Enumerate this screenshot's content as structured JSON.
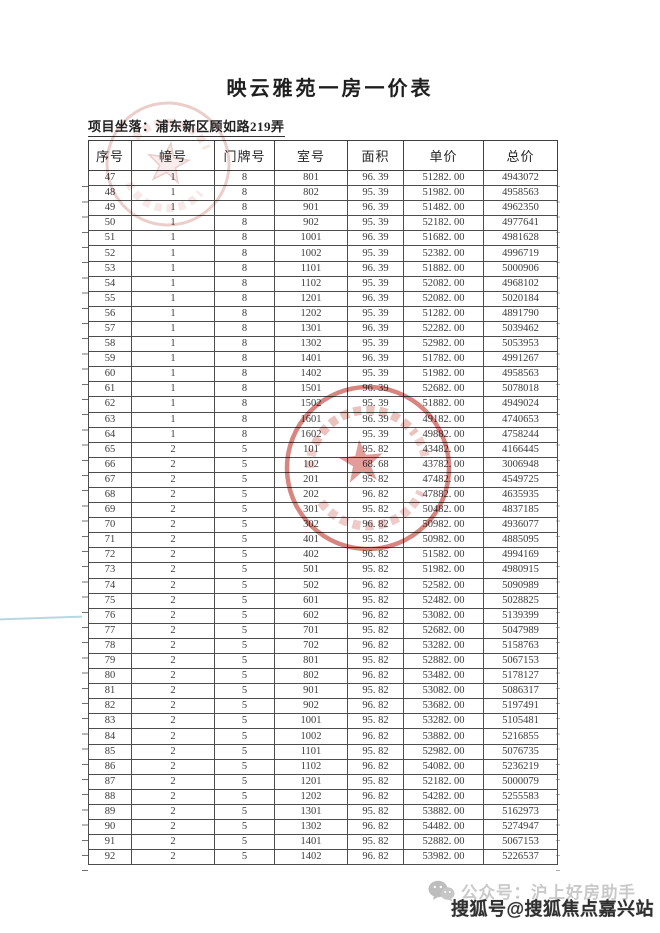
{
  "document": {
    "title": "映云雅苑一房一价表",
    "location": "项目坐落：浦东新区顾如路219弄"
  },
  "table": {
    "headers": [
      "序号",
      "幢号",
      "门牌号",
      "室号",
      "面积",
      "单价",
      "总价"
    ],
    "rows": [
      [
        "47",
        "1",
        "8",
        "801",
        "96. 39",
        "51282. 00",
        "4943072"
      ],
      [
        "48",
        "1",
        "8",
        "802",
        "95. 39",
        "51982. 00",
        "4958563"
      ],
      [
        "49",
        "1",
        "8",
        "901",
        "96. 39",
        "51482. 00",
        "4962350"
      ],
      [
        "50",
        "1",
        "8",
        "902",
        "95. 39",
        "52182. 00",
        "4977641"
      ],
      [
        "51",
        "1",
        "8",
        "1001",
        "96. 39",
        "51682. 00",
        "4981628"
      ],
      [
        "52",
        "1",
        "8",
        "1002",
        "95. 39",
        "52382. 00",
        "4996719"
      ],
      [
        "53",
        "1",
        "8",
        "1101",
        "96. 39",
        "51882. 00",
        "5000906"
      ],
      [
        "54",
        "1",
        "8",
        "1102",
        "95. 39",
        "52082. 00",
        "4968102"
      ],
      [
        "55",
        "1",
        "8",
        "1201",
        "96. 39",
        "52082. 00",
        "5020184"
      ],
      [
        "56",
        "1",
        "8",
        "1202",
        "95. 39",
        "51282. 00",
        "4891790"
      ],
      [
        "57",
        "1",
        "8",
        "1301",
        "96. 39",
        "52282. 00",
        "5039462"
      ],
      [
        "58",
        "1",
        "8",
        "1302",
        "95. 39",
        "52982. 00",
        "5053953"
      ],
      [
        "59",
        "1",
        "8",
        "1401",
        "96. 39",
        "51782. 00",
        "4991267"
      ],
      [
        "60",
        "1",
        "8",
        "1402",
        "95. 39",
        "51982. 00",
        "4958563"
      ],
      [
        "61",
        "1",
        "8",
        "1501",
        "96. 39",
        "52682. 00",
        "5078018"
      ],
      [
        "62",
        "1",
        "8",
        "1502",
        "95. 39",
        "51882. 00",
        "4949024"
      ],
      [
        "63",
        "1",
        "8",
        "1601",
        "96. 39",
        "49182. 00",
        "4740653"
      ],
      [
        "64",
        "1",
        "8",
        "1602",
        "95. 39",
        "49882. 00",
        "4758244"
      ],
      [
        "65",
        "2",
        "5",
        "101",
        "95. 82",
        "43482. 00",
        "4166445"
      ],
      [
        "66",
        "2",
        "5",
        "102",
        "68. 68",
        "43782. 00",
        "3006948"
      ],
      [
        "67",
        "2",
        "5",
        "201",
        "95. 82",
        "47482. 00",
        "4549725"
      ],
      [
        "68",
        "2",
        "5",
        "202",
        "96. 82",
        "47882. 00",
        "4635935"
      ],
      [
        "69",
        "2",
        "5",
        "301",
        "95. 82",
        "50482. 00",
        "4837185"
      ],
      [
        "70",
        "2",
        "5",
        "302",
        "96. 82",
        "50982. 00",
        "4936077"
      ],
      [
        "71",
        "2",
        "5",
        "401",
        "95. 82",
        "50982. 00",
        "4885095"
      ],
      [
        "72",
        "2",
        "5",
        "402",
        "96. 82",
        "51582. 00",
        "4994169"
      ],
      [
        "73",
        "2",
        "5",
        "501",
        "95. 82",
        "51982. 00",
        "4980915"
      ],
      [
        "74",
        "2",
        "5",
        "502",
        "96. 82",
        "52582. 00",
        "5090989"
      ],
      [
        "75",
        "2",
        "5",
        "601",
        "95. 82",
        "52482. 00",
        "5028825"
      ],
      [
        "76",
        "2",
        "5",
        "602",
        "96. 82",
        "53082. 00",
        "5139399"
      ],
      [
        "77",
        "2",
        "5",
        "701",
        "95. 82",
        "52682. 00",
        "5047989"
      ],
      [
        "78",
        "2",
        "5",
        "702",
        "96. 82",
        "53282. 00",
        "5158763"
      ],
      [
        "79",
        "2",
        "5",
        "801",
        "95. 82",
        "52882. 00",
        "5067153"
      ],
      [
        "80",
        "2",
        "5",
        "802",
        "96. 82",
        "53482. 00",
        "5178127"
      ],
      [
        "81",
        "2",
        "5",
        "901",
        "95. 82",
        "53082. 00",
        "5086317"
      ],
      [
        "82",
        "2",
        "5",
        "902",
        "96. 82",
        "53682. 00",
        "5197491"
      ],
      [
        "83",
        "2",
        "5",
        "1001",
        "95. 82",
        "53282. 00",
        "5105481"
      ],
      [
        "84",
        "2",
        "5",
        "1002",
        "96. 82",
        "53882. 00",
        "5216855"
      ],
      [
        "85",
        "2",
        "5",
        "1101",
        "95. 82",
        "52982. 00",
        "5076735"
      ],
      [
        "86",
        "2",
        "5",
        "1102",
        "96. 82",
        "54082. 00",
        "5236219"
      ],
      [
        "87",
        "2",
        "5",
        "1201",
        "95. 82",
        "52182. 00",
        "5000079"
      ],
      [
        "88",
        "2",
        "5",
        "1202",
        "96. 82",
        "54282. 00",
        "5255583"
      ],
      [
        "89",
        "2",
        "5",
        "1301",
        "95. 82",
        "53882. 00",
        "5162973"
      ],
      [
        "90",
        "2",
        "5",
        "1302",
        "96. 82",
        "54482. 00",
        "5274947"
      ],
      [
        "91",
        "2",
        "5",
        "1401",
        "95. 82",
        "52882. 00",
        "5067153"
      ],
      [
        "92",
        "2",
        "5",
        "1402",
        "96. 82",
        "53982. 00",
        "5226537"
      ]
    ]
  },
  "stamps": {
    "main_seal": {
      "description": "red round company seal with five-point star",
      "color": "#c0392f"
    },
    "faint_seal": {
      "description": "faint pink round seal with star",
      "color": "#d89b94"
    }
  },
  "footer": {
    "wechat_text": "公众号：沪上好房助手",
    "wechat_color": "#c9c9c9",
    "sohu_text": "搜狐号@搜狐焦点嘉兴站",
    "sohu_color": "#2f2f2f"
  }
}
